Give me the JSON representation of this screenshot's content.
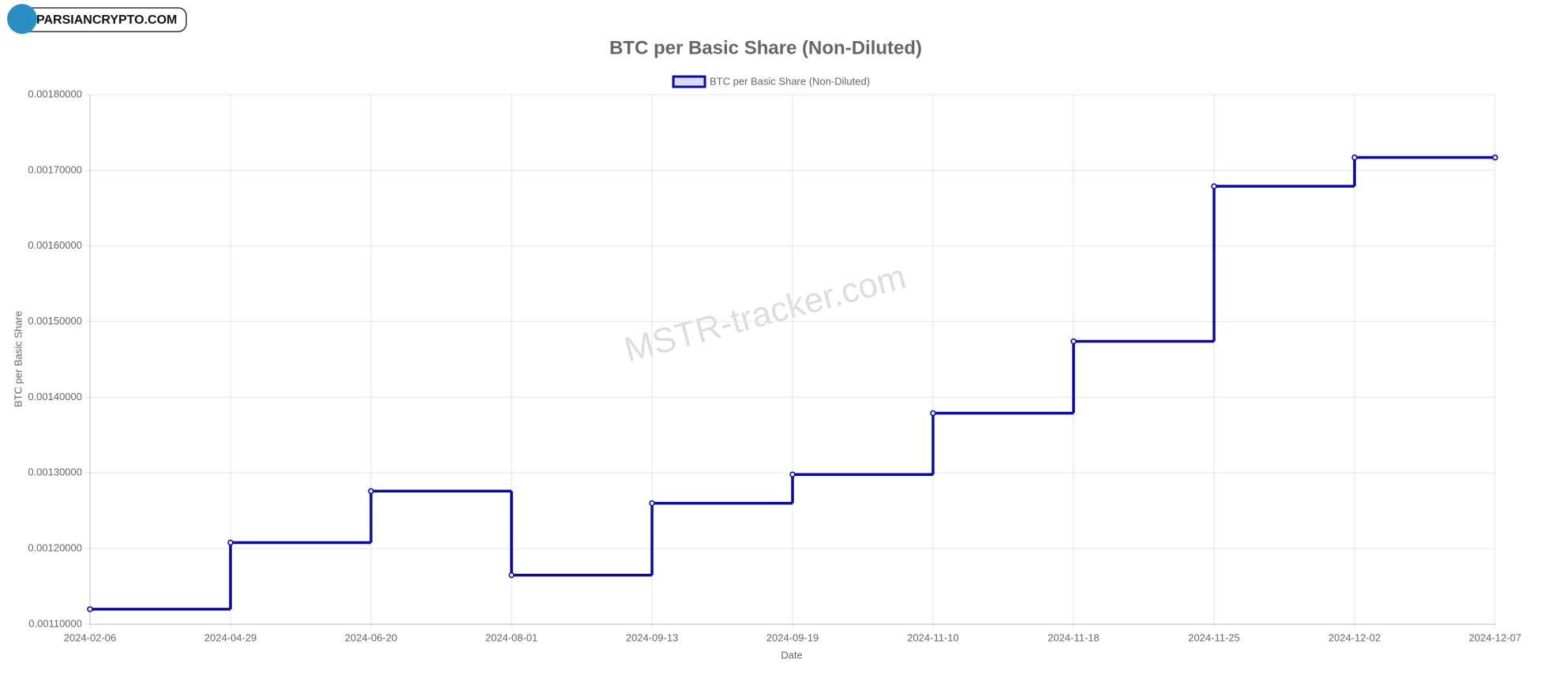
{
  "logo": "PARSIANCRYPTO.COM",
  "chart_data": {
    "type": "step-line",
    "title": "BTC per Basic Share (Non-Diluted)",
    "watermark": "MSTR-tracker.com",
    "x_label": "Date",
    "y_label": "BTC per Basic Share",
    "categories": [
      "2024-02-06",
      "2024-04-29",
      "2024-06-20",
      "2024-08-01",
      "2024-09-13",
      "2024-09-19",
      "2024-11-10",
      "2024-11-18",
      "2024-11-25",
      "2024-12-02",
      "2024-12-07"
    ],
    "series": [
      {
        "name": "BTC per Basic Share (Non-Diluted)",
        "color": "#0a0a9c",
        "values": [
          0.00112,
          0.001208,
          0.001276,
          0.001165,
          0.00126,
          0.001298,
          0.001379,
          0.001474,
          0.001679,
          0.001717,
          0.001717
        ]
      }
    ],
    "ylim": [
      0.0011,
      0.0018
    ],
    "yticks": [
      {
        "value": 0.0011,
        "label": "0.00110000"
      },
      {
        "value": 0.0012,
        "label": "0.00120000"
      },
      {
        "value": 0.0013,
        "label": "0.00130000"
      },
      {
        "value": 0.0014,
        "label": "0.00140000"
      },
      {
        "value": 0.0015,
        "label": "0.00150000"
      },
      {
        "value": 0.0016,
        "label": "0.00160000"
      },
      {
        "value": 0.0017,
        "label": "0.00170000"
      },
      {
        "value": 0.0018,
        "label": "0.00180000"
      }
    ],
    "grid": true,
    "legend": "top"
  }
}
